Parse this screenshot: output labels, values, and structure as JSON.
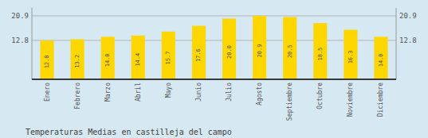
{
  "chart_data": {
    "type": "bar",
    "title": "Temperaturas Medias en castilleja del campo",
    "categories": [
      "Enero",
      "Febrero",
      "Marzo",
      "Abril",
      "Mayo",
      "Junio",
      "Julio",
      "Agosto",
      "Septiembre",
      "Octubre",
      "Noviembre",
      "Diciembre"
    ],
    "values": [
      12.8,
      13.2,
      14.0,
      14.4,
      15.7,
      17.6,
      20.0,
      20.9,
      20.5,
      18.5,
      16.3,
      14.0
    ],
    "value_labels": [
      "12.8",
      "13.2",
      "14.0",
      "14.4",
      "15.7",
      "17.6",
      "20.0",
      "20.9",
      "20.5",
      "18.5",
      "16.3",
      "14.0"
    ],
    "color": "#FFD700",
    "ylim": [
      0.0,
      23.5
    ],
    "yticks": [
      20.9,
      12.8
    ],
    "y2lim": [
      0.0,
      23.5
    ],
    "y2ticks": [
      20.9,
      12.8
    ],
    "grid": true,
    "data_labels": true
  }
}
